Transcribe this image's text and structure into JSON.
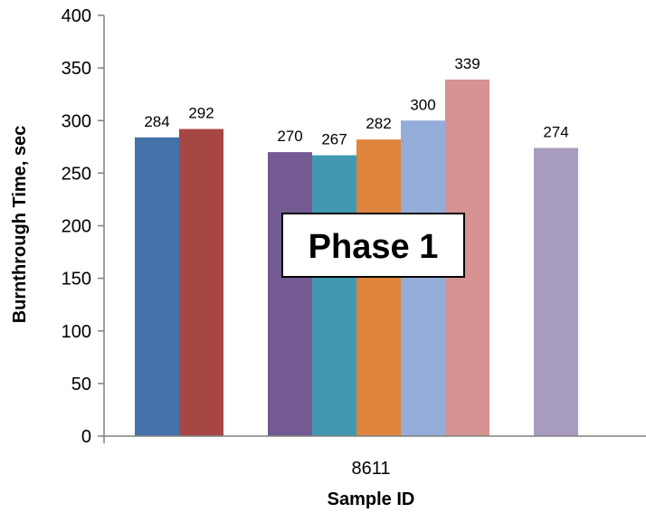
{
  "chart_data": {
    "type": "bar",
    "categories": [
      "8611"
    ],
    "series": [
      {
        "values": [
          284
        ],
        "color": "#4472A8"
      },
      {
        "values": [
          292
        ],
        "color": "#A64745"
      },
      {
        "values": [
          null
        ]
      },
      {
        "values": [
          270
        ],
        "color": "#735A92"
      },
      {
        "values": [
          267
        ],
        "color": "#4099B0"
      },
      {
        "values": [
          282
        ],
        "color": "#DF843D"
      },
      {
        "values": [
          300
        ],
        "color": "#94ACD8"
      },
      {
        "values": [
          339
        ],
        "color": "#D69191"
      },
      {
        "values": [
          null
        ]
      },
      {
        "values": [
          274
        ],
        "color": "#A99CC1"
      }
    ],
    "data_labels": [
      "284",
      "292",
      "",
      "270",
      "267",
      "282",
      "300",
      "339",
      "",
      "274"
    ],
    "xlabel": "Sample ID",
    "ylabel": "Burnthrough Time, sec",
    "ylim": [
      0,
      400
    ],
    "yticks": [
      0,
      50,
      100,
      150,
      200,
      250,
      300,
      350,
      400
    ],
    "grid": false,
    "annotation": "Phase 1"
  }
}
